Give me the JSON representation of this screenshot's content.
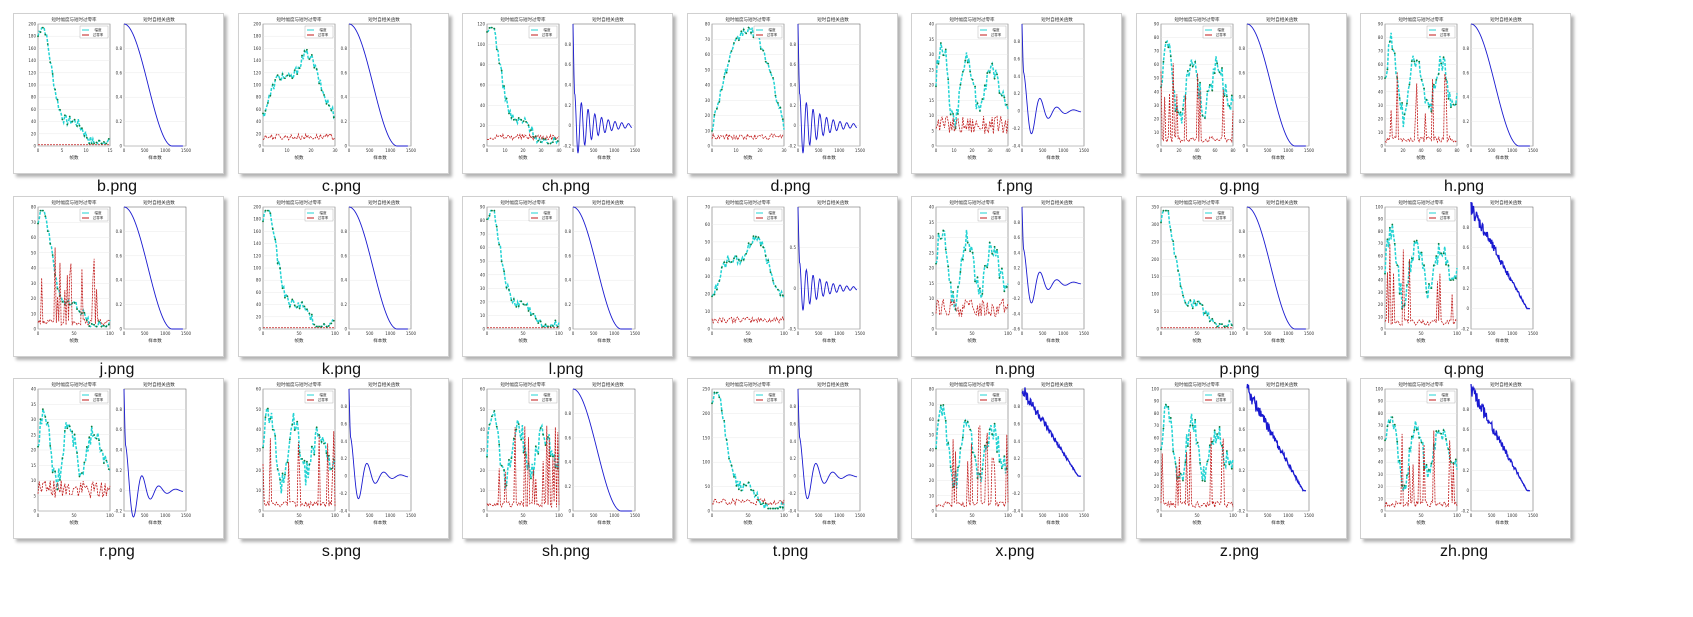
{
  "view": "thumbnails",
  "figure": {
    "left_title": "短时幅度与短时过零率",
    "right_title": "短时自相关函数",
    "left_xlabel": "帧数",
    "right_xlabel": "样本数",
    "legend_amplitude": "幅度",
    "legend_zcr": "过零率",
    "right_xticks": [
      "0",
      "500",
      "1000",
      "1500"
    ]
  },
  "colors": {
    "amplitude_fill": "#22d3d3",
    "amplitude_dots": "#127a3a",
    "zcr": "#c01818",
    "zcr_alt": "#222222",
    "autocorr": "#1a1ad0"
  },
  "files": [
    {
      "name": "b.png",
      "left": {
        "xmax": 15,
        "ymax": 200,
        "xticks": [
          "0",
          "5",
          "10",
          "15"
        ],
        "yticks": [
          "0",
          "20",
          "40",
          "60",
          "80",
          "100",
          "120",
          "140",
          "160",
          "180",
          "200"
        ],
        "amp": "decay",
        "zcr": "flat"
      },
      "right": {
        "type": "smooth",
        "ymin": 0,
        "ymax": 1,
        "yticks": [
          "0",
          "0.2",
          "0.4",
          "0.6",
          "0.8"
        ]
      }
    },
    {
      "name": "c.png",
      "left": {
        "xmax": 30,
        "ymax": 200,
        "xticks": [
          "0",
          "10",
          "20",
          "30"
        ],
        "yticks": [
          "0",
          "20",
          "40",
          "60",
          "80",
          "100",
          "120",
          "140",
          "160",
          "180",
          "200"
        ],
        "amp": "hump",
        "zcr": "low"
      },
      "right": {
        "type": "smooth",
        "ymin": 0,
        "ymax": 1,
        "yticks": [
          "0",
          "0.2",
          "0.4",
          "0.6",
          "0.8"
        ]
      }
    },
    {
      "name": "ch.png",
      "left": {
        "xmax": 40,
        "ymax": 120,
        "xticks": [
          "0",
          "10",
          "20",
          "30",
          "40"
        ],
        "yticks": [
          "0",
          "20",
          "40",
          "60",
          "80",
          "100",
          "120"
        ],
        "amp": "decay",
        "zcr": "low"
      },
      "right": {
        "type": "oscill",
        "ymin": -0.2,
        "ymax": 1,
        "yticks": [
          "-0.2",
          "0",
          "0.2",
          "0.4",
          "0.6",
          "0.8"
        ]
      }
    },
    {
      "name": "d.png",
      "left": {
        "xmax": 30,
        "ymax": 80,
        "xticks": [
          "0",
          "10",
          "20",
          "30"
        ],
        "yticks": [
          "0",
          "10",
          "20",
          "30",
          "40",
          "50",
          "60",
          "70",
          "80"
        ],
        "amp": "arch",
        "zcr": "low"
      },
      "right": {
        "type": "oscill",
        "ymin": -0.2,
        "ymax": 1,
        "yticks": [
          "-0.2",
          "0",
          "0.2",
          "0.4",
          "0.6",
          "0.8"
        ]
      }
    },
    {
      "name": "f.png",
      "left": {
        "xmax": 40,
        "ymax": 40,
        "xticks": [
          "0",
          "10",
          "20",
          "30",
          "40"
        ],
        "yticks": [
          "0",
          "5",
          "10",
          "15",
          "20",
          "25",
          "30",
          "35",
          "40"
        ],
        "amp": "noisy",
        "zcr": "mid"
      },
      "right": {
        "type": "damped",
        "ymin": -0.4,
        "ymax": 1,
        "yticks": [
          "-0.4",
          "-0.2",
          "0",
          "0.2",
          "0.4",
          "0.6",
          "0.8"
        ]
      }
    },
    {
      "name": "g.png",
      "left": {
        "xmax": 80,
        "ymax": 90,
        "xticks": [
          "0",
          "20",
          "40",
          "60",
          "80"
        ],
        "yticks": [
          "0",
          "10",
          "20",
          "30",
          "40",
          "50",
          "60",
          "70",
          "80",
          "90"
        ],
        "amp": "noisy",
        "zcr": "spike"
      },
      "right": {
        "type": "smooth",
        "ymin": 0,
        "ymax": 1,
        "yticks": [
          "0",
          "0.2",
          "0.4",
          "0.6",
          "0.8"
        ]
      }
    },
    {
      "name": "h.png",
      "left": {
        "xmax": 80,
        "ymax": 90,
        "xticks": [
          "0",
          "20",
          "40",
          "60",
          "80"
        ],
        "yticks": [
          "0",
          "10",
          "20",
          "30",
          "40",
          "50",
          "60",
          "70",
          "80",
          "90"
        ],
        "amp": "noisy",
        "zcr": "spike"
      },
      "right": {
        "type": "smooth",
        "ymin": 0,
        "ymax": 1,
        "yticks": [
          "0",
          "0.2",
          "0.4",
          "0.6",
          "0.8"
        ]
      }
    },
    {
      "name": "j.png",
      "left": {
        "xmax": 100,
        "ymax": 80,
        "xticks": [
          "0",
          "50",
          "100"
        ],
        "yticks": [
          "0",
          "10",
          "20",
          "30",
          "40",
          "50",
          "60",
          "70",
          "80"
        ],
        "amp": "decay",
        "zcr": "spike"
      },
      "right": {
        "type": "smooth",
        "ymin": 0,
        "ymax": 1,
        "yticks": [
          "0",
          "0.2",
          "0.4",
          "0.6",
          "0.8"
        ]
      }
    },
    {
      "name": "k.png",
      "left": {
        "xmax": 100,
        "ymax": 200,
        "xticks": [
          "0",
          "50",
          "100"
        ],
        "yticks": [
          "0",
          "20",
          "40",
          "60",
          "80",
          "100",
          "120",
          "140",
          "160",
          "180",
          "200"
        ],
        "amp": "decay",
        "zcr": "flat"
      },
      "right": {
        "type": "smooth",
        "ymin": 0,
        "ymax": 1,
        "yticks": [
          "0",
          "0.2",
          "0.4",
          "0.6",
          "0.8"
        ]
      }
    },
    {
      "name": "l.png",
      "left": {
        "xmax": 100,
        "ymax": 90,
        "xticks": [
          "0",
          "50",
          "100"
        ],
        "yticks": [
          "0",
          "10",
          "20",
          "30",
          "40",
          "50",
          "60",
          "70",
          "80",
          "90"
        ],
        "amp": "decay",
        "zcr": "flat"
      },
      "right": {
        "type": "smooth",
        "ymin": 0,
        "ymax": 1,
        "yticks": [
          "0",
          "0.2",
          "0.4",
          "0.6",
          "0.8"
        ]
      }
    },
    {
      "name": "m.png",
      "left": {
        "xmax": 100,
        "ymax": 70,
        "xticks": [
          "0",
          "50",
          "100"
        ],
        "yticks": [
          "0",
          "10",
          "20",
          "30",
          "40",
          "50",
          "60",
          "70"
        ],
        "amp": "hump",
        "zcr": "low"
      },
      "right": {
        "type": "oscill",
        "ymin": -0.5,
        "ymax": 1,
        "yticks": [
          "-0.5",
          "0",
          "0.5"
        ]
      }
    },
    {
      "name": "n.png",
      "left": {
        "xmax": 100,
        "ymax": 40,
        "xticks": [
          "0",
          "50",
          "100"
        ],
        "yticks": [
          "0",
          "5",
          "10",
          "15",
          "20",
          "25",
          "30",
          "35",
          "40"
        ],
        "amp": "noisy",
        "zcr": "mid"
      },
      "right": {
        "type": "damped",
        "ymin": -0.6,
        "ymax": 1,
        "yticks": [
          "-0.6",
          "-0.4",
          "-0.2",
          "0",
          "0.2",
          "0.4",
          "0.6",
          "0.8"
        ]
      }
    },
    {
      "name": "p.png",
      "left": {
        "xmax": 100,
        "ymax": 350,
        "xticks": [
          "0",
          "50",
          "100"
        ],
        "yticks": [
          "0",
          "50",
          "100",
          "150",
          "200",
          "250",
          "300",
          "350"
        ],
        "amp": "decay",
        "zcr": "flat"
      },
      "right": {
        "type": "smooth",
        "ymin": 0,
        "ymax": 1,
        "yticks": [
          "0",
          "0.2",
          "0.4",
          "0.6",
          "0.8"
        ]
      }
    },
    {
      "name": "q.png",
      "left": {
        "xmax": 100,
        "ymax": 100,
        "xticks": [
          "0",
          "50",
          "100"
        ],
        "yticks": [
          "0",
          "10",
          "20",
          "30",
          "40",
          "50",
          "60",
          "70",
          "80",
          "90",
          "100"
        ],
        "amp": "noisy",
        "zcr": "spike"
      },
      "right": {
        "type": "noisy",
        "ymin": -0.2,
        "ymax": 1,
        "yticks": [
          "-0.2",
          "0",
          "0.2",
          "0.4",
          "0.6",
          "0.8"
        ]
      }
    },
    {
      "name": "r.png",
      "left": {
        "xmax": 100,
        "ymax": 40,
        "xticks": [
          "0",
          "50",
          "100"
        ],
        "yticks": [
          "0",
          "5",
          "10",
          "15",
          "20",
          "25",
          "30",
          "35",
          "40"
        ],
        "amp": "noisy",
        "zcr": "mid"
      },
      "right": {
        "type": "damped",
        "ymin": -0.2,
        "ymax": 1,
        "yticks": [
          "-0.2",
          "0",
          "0.2",
          "0.4",
          "0.6",
          "0.8"
        ]
      }
    },
    {
      "name": "s.png",
      "left": {
        "xmax": 100,
        "ymax": 60,
        "xticks": [
          "0",
          "50",
          "100"
        ],
        "yticks": [
          "0",
          "10",
          "20",
          "30",
          "40",
          "50",
          "60"
        ],
        "amp": "noisy",
        "zcr": "spike"
      },
      "right": {
        "type": "damped",
        "ymin": -0.4,
        "ymax": 1,
        "yticks": [
          "-0.4",
          "-0.2",
          "0",
          "0.2",
          "0.4",
          "0.6",
          "0.8"
        ]
      }
    },
    {
      "name": "sh.png",
      "left": {
        "xmax": 100,
        "ymax": 60,
        "xticks": [
          "0",
          "50",
          "100"
        ],
        "yticks": [
          "0",
          "10",
          "20",
          "30",
          "40",
          "50",
          "60"
        ],
        "amp": "noisy",
        "zcr": "spike"
      },
      "right": {
        "type": "smooth",
        "ymin": 0,
        "ymax": 1,
        "yticks": [
          "0",
          "0.2",
          "0.4",
          "0.6",
          "0.8"
        ]
      }
    },
    {
      "name": "t.png",
      "left": {
        "xmax": 100,
        "ymax": 250,
        "xticks": [
          "0",
          "50",
          "100"
        ],
        "yticks": [
          "0",
          "50",
          "100",
          "150",
          "200",
          "250"
        ],
        "amp": "decay",
        "zcr": "low"
      },
      "right": {
        "type": "damped",
        "ymin": -0.4,
        "ymax": 1,
        "yticks": [
          "-0.4",
          "-0.2",
          "0",
          "0.2",
          "0.4",
          "0.6",
          "0.8"
        ]
      }
    },
    {
      "name": "x.png",
      "left": {
        "xmax": 100,
        "ymax": 80,
        "xticks": [
          "0",
          "50",
          "100"
        ],
        "yticks": [
          "0",
          "10",
          "20",
          "30",
          "40",
          "50",
          "60",
          "70",
          "80"
        ],
        "amp": "noisy",
        "zcr": "spike"
      },
      "right": {
        "type": "noisy",
        "ymin": -0.4,
        "ymax": 1,
        "yticks": [
          "-0.4",
          "-0.2",
          "0",
          "0.2",
          "0.4",
          "0.6",
          "0.8"
        ]
      }
    },
    {
      "name": "z.png",
      "left": {
        "xmax": 100,
        "ymax": 100,
        "xticks": [
          "0",
          "50",
          "100"
        ],
        "yticks": [
          "0",
          "10",
          "20",
          "30",
          "40",
          "50",
          "60",
          "70",
          "80",
          "90",
          "100"
        ],
        "amp": "noisy",
        "zcr": "spike"
      },
      "right": {
        "type": "noisy",
        "ymin": -0.2,
        "ymax": 1,
        "yticks": [
          "-0.2",
          "0",
          "0.2",
          "0.4",
          "0.6",
          "0.8"
        ]
      }
    },
    {
      "name": "zh.png",
      "left": {
        "xmax": 100,
        "ymax": 100,
        "xticks": [
          "0",
          "50",
          "100"
        ],
        "yticks": [
          "0",
          "10",
          "20",
          "30",
          "40",
          "50",
          "60",
          "70",
          "80",
          "90",
          "100"
        ],
        "amp": "noisy",
        "zcr": "spike"
      },
      "right": {
        "type": "noisy",
        "ymin": -0.2,
        "ymax": 1,
        "yticks": [
          "-0.2",
          "0",
          "0.2",
          "0.4",
          "0.6",
          "0.8"
        ]
      }
    }
  ]
}
